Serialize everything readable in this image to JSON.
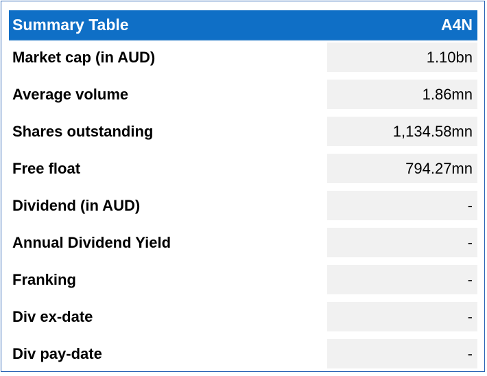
{
  "table": {
    "title": "Summary Table",
    "ticker": "A4N",
    "rows": [
      {
        "label": "Market cap (in AUD)",
        "value": "1.10bn"
      },
      {
        "label": "Average volume",
        "value": "1.86mn"
      },
      {
        "label": "Shares outstanding",
        "value": "1,134.58mn"
      },
      {
        "label": "Free float",
        "value": "794.27mn"
      },
      {
        "label": "Dividend (in AUD)",
        "value": "-"
      },
      {
        "label": "Annual Dividend Yield",
        "value": "-"
      },
      {
        "label": "Franking",
        "value": "-"
      },
      {
        "label": "Div ex-date",
        "value": "-"
      },
      {
        "label": "Div pay-date",
        "value": "-"
      }
    ]
  },
  "colors": {
    "header_bg": "#0f6fc6",
    "header_text": "#ffffff",
    "value_bg": "#f1f1f1",
    "border": "#2a64b4"
  }
}
